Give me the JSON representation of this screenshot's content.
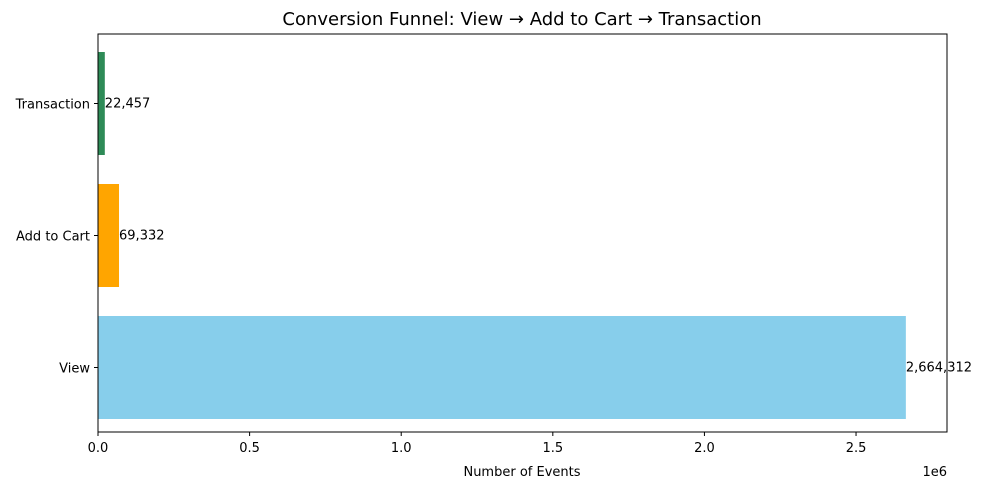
{
  "chart_data": {
    "type": "bar",
    "orientation": "horizontal",
    "title": "Conversion Funnel: View → Add to Cart → Transaction",
    "xlabel": "Number of Events",
    "ylabel": "",
    "x_scale_label": "1e6",
    "xlim": [
      0,
      2.8
    ],
    "x_ticks": [
      0.0,
      0.5,
      1.0,
      1.5,
      2.0,
      2.5
    ],
    "x_tick_labels": [
      "0.0",
      "0.5",
      "1.0",
      "1.5",
      "2.0",
      "2.5"
    ],
    "categories": [
      "View",
      "Add to Cart",
      "Transaction"
    ],
    "values": [
      2664312,
      69332,
      22457
    ],
    "value_labels": [
      "2,664,312",
      "69,332",
      "22,457"
    ],
    "colors": [
      "#87ceeb",
      "#ffa500",
      "#2e8b57"
    ],
    "grid": false,
    "legend": "none"
  }
}
